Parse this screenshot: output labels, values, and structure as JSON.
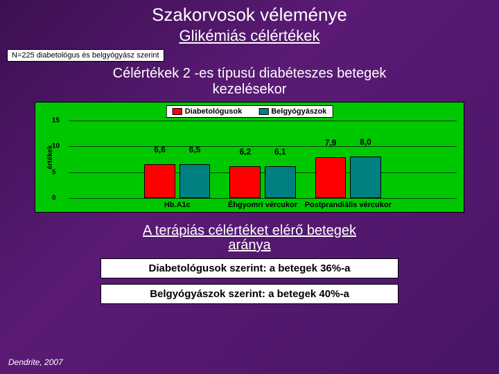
{
  "title": "Szakorvosok véleménye",
  "subtitle": "Glikémiás célértékek",
  "n_note": "N=225 diabetológus és belgyógyász szerint",
  "chart_title_l1": "Célértékek 2 -es típusú diabéteszes betegek",
  "chart_title_l2": "kezelésekor",
  "chart": {
    "type": "bar",
    "ylabel": "értékek",
    "ylim": [
      0,
      15
    ],
    "yticks": [
      0,
      5,
      10,
      15
    ],
    "background_color": "#00c800",
    "bar_border": "#000000",
    "legend": [
      {
        "name": "Diabetológusok",
        "color": "#ff0000"
      },
      {
        "name": "Belgyógyászok",
        "color": "#008080"
      }
    ],
    "groups": [
      {
        "label": "Hb.A1c",
        "values": [
          6.6,
          6.5
        ],
        "display": [
          "6,6",
          "6,5"
        ]
      },
      {
        "label": "Éhgyomri vércukor",
        "values": [
          6.2,
          6.1
        ],
        "display": [
          "6,2",
          "6,1"
        ]
      },
      {
        "label": "Postprandiális vércukor",
        "values": [
          7.9,
          8.0
        ],
        "display": [
          "7,9",
          "8,0"
        ]
      }
    ],
    "bar_width_pct": 8.0,
    "group_gap_pct": 5.0
  },
  "post_title_l1": "A terápiás célértéket elérő betegek",
  "post_title_l2": "aránya",
  "result1": "Diabetológusok szerint: a betegek 36%-a",
  "result2": "Belgyógyászok szerint: a betegek 40%-a",
  "footer": "Dendrite, 2007"
}
